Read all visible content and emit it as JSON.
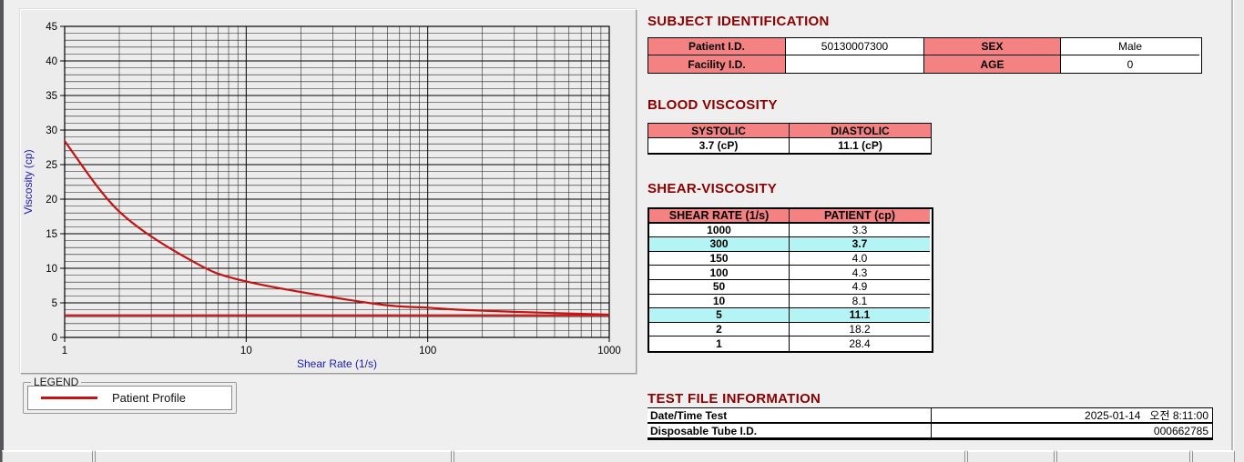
{
  "subject_identification": {
    "title": "SUBJECT IDENTIFICATION",
    "rows": [
      {
        "label1": "Patient I.D.",
        "value1": "50130007300",
        "label2": "SEX",
        "value2": "Male"
      },
      {
        "label1": "Facility I.D.",
        "value1": "",
        "label2": "AGE",
        "value2": "0"
      }
    ]
  },
  "blood_viscosity": {
    "title": "BLOOD VISCOSITY",
    "headers": [
      "SYSTOLIC",
      "DIASTOLIC"
    ],
    "values": [
      "3.7 (cP)",
      "11.1 (cP)"
    ]
  },
  "shear_viscosity": {
    "title": "SHEAR-VISCOSITY",
    "headers": [
      "SHEAR RATE (1/s)",
      "PATIENT (cp)"
    ],
    "rows": [
      [
        "1000",
        "3.3"
      ],
      [
        "300",
        "3.7"
      ],
      [
        "150",
        "4.0"
      ],
      [
        "100",
        "4.3"
      ],
      [
        "50",
        "4.9"
      ],
      [
        "10",
        "8.1"
      ],
      [
        "5",
        "11.1"
      ],
      [
        "2",
        "18.2"
      ],
      [
        "1",
        "28.4"
      ]
    ],
    "highlighted_rows": [
      1,
      6
    ],
    "highlight_color": "#b4f4f4",
    "header_color": "#f48282"
  },
  "test_file_information": {
    "title": "TEST FILE INFORMATION",
    "rows": [
      [
        "Date/Time Test",
        "2025-01-14   오전 8:11:00"
      ],
      [
        "Disposable Tube I.D.",
        "000662785"
      ]
    ]
  },
  "legend": {
    "box_label": "LEGEND",
    "series_label": "Patient Profile",
    "line_color": "#c41414"
  },
  "chart_data": {
    "type": "line",
    "title": "",
    "xlabel": "Shear Rate (1/s)",
    "ylabel": "Viscosity (cp)",
    "x_scale": "log",
    "xlim": [
      1,
      1000
    ],
    "ylim": [
      0,
      45
    ],
    "y_major_step": 5,
    "y_minor_step": 1,
    "x_major_ticks": [
      1,
      10,
      100,
      1000
    ],
    "y_major_ticks": [
      0,
      5,
      10,
      15,
      20,
      25,
      30,
      35,
      40,
      45
    ],
    "grid": "on",
    "grid_color": "#1c1c1c",
    "axis_label_color": "#1a1ab8",
    "tick_label_color": "#000000",
    "plot_bg": "#ececec",
    "series": [
      {
        "name": "Patient Profile",
        "color": "#c41414",
        "x": [
          1,
          2,
          5,
          10,
          50,
          100,
          150,
          300,
          1000
        ],
        "y": [
          28.4,
          18.2,
          11.1,
          8.1,
          4.9,
          4.3,
          4.0,
          3.7,
          3.3
        ]
      }
    ],
    "reference_line": {
      "y": 3.2,
      "color": "#c41414"
    },
    "legend_position": "below-left"
  },
  "section_title_color": "#8b0000"
}
